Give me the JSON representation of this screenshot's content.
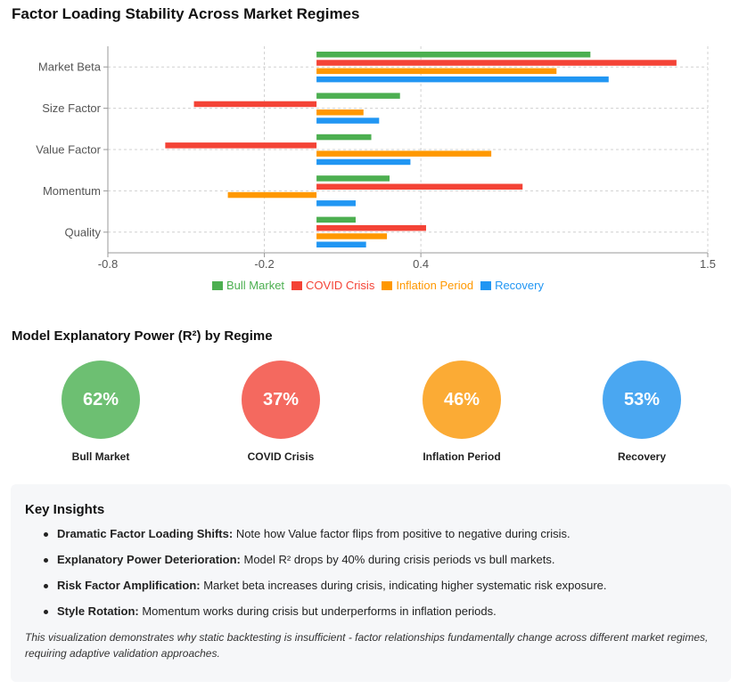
{
  "chart_data": {
    "type": "bar",
    "orientation": "horizontal",
    "title": "Factor Loading Stability Across Market Regimes",
    "categories": [
      "Market Beta",
      "Size Factor",
      "Value Factor",
      "Momentum",
      "Quality"
    ],
    "series": [
      {
        "name": "Bull Market",
        "color": "#4caf50",
        "values": [
          1.05,
          0.32,
          0.21,
          0.28,
          0.15
        ]
      },
      {
        "name": "COVID Crisis",
        "color": "#f44336",
        "values": [
          1.38,
          -0.47,
          -0.58,
          0.79,
          0.42
        ]
      },
      {
        "name": "Inflation Period",
        "color": "#ff9800",
        "values": [
          0.92,
          0.18,
          0.67,
          -0.34,
          0.27
        ]
      },
      {
        "name": "Recovery",
        "color": "#2196f3",
        "values": [
          1.12,
          0.24,
          0.36,
          0.15,
          0.19
        ]
      }
    ],
    "xlim": [
      -0.8,
      1.5
    ],
    "xticks": [
      "-0.8",
      "-0.2",
      "0.4",
      "1.5"
    ],
    "xtick_values": [
      -0.8,
      -0.2,
      0.4,
      1.5
    ],
    "grid": true,
    "legend": "bottom"
  },
  "r2": {
    "title": "Model Explanatory Power (R²) by Regime",
    "items": [
      {
        "label": "Bull Market",
        "value": "62%",
        "color": "#6dbf72"
      },
      {
        "label": "COVID Crisis",
        "value": "37%",
        "color": "#f4695f"
      },
      {
        "label": "Inflation Period",
        "value": "46%",
        "color": "#fbab35"
      },
      {
        "label": "Recovery",
        "value": "53%",
        "color": "#4aa7f1"
      }
    ]
  },
  "insights": {
    "title": "Key Insights",
    "items": [
      {
        "head": "Dramatic Factor Loading Shifts:",
        "text": " Note how Value factor flips from positive to negative during crisis."
      },
      {
        "head": "Explanatory Power Deterioration:",
        "text": " Model R² drops by 40% during crisis periods vs bull markets."
      },
      {
        "head": "Risk Factor Amplification:",
        "text": " Market beta increases during crisis, indicating higher systematic risk exposure."
      },
      {
        "head": "Style Rotation:",
        "text": " Momentum works during crisis but underperforms in inflation periods."
      }
    ],
    "note": "This visualization demonstrates why static backtesting is insufficient - factor relationships fundamentally change across different market regimes, requiring adaptive validation approaches."
  }
}
